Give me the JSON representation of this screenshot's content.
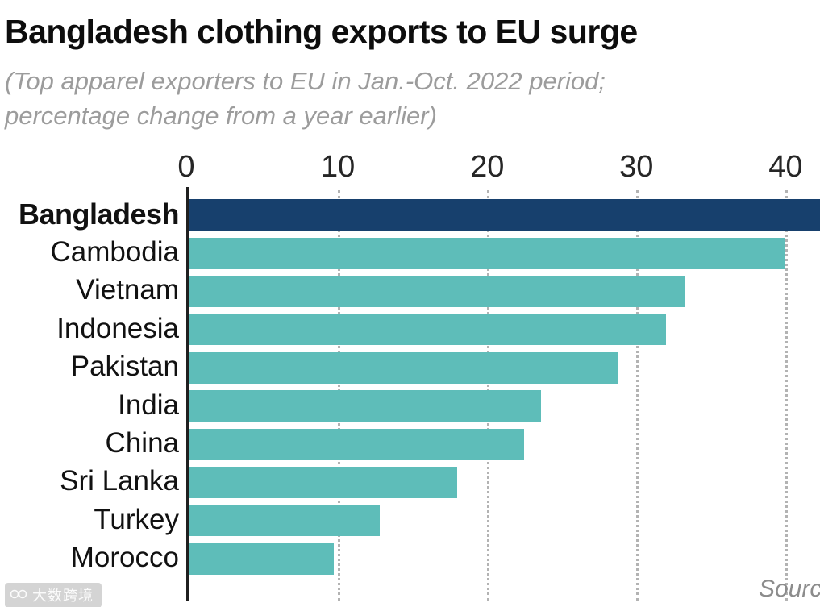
{
  "header": {
    "title": "Bangladesh clothing exports to EU surge",
    "subtitle_line1": "(Top apparel exporters to EU in Jan.-Oct. 2022 period;",
    "subtitle_line2": "percentage change from a year earlier)"
  },
  "footer": {
    "source_label": "Sourc",
    "watermark": "大数跨境"
  },
  "chart_data": {
    "type": "bar",
    "orientation": "horizontal",
    "title": "Bangladesh clothing exports to EU surge",
    "subtitle": "(Top apparel exporters to EU in Jan.-Oct. 2022 period; percentage change from a year earlier)",
    "categories": [
      "Bangladesh",
      "Cambodia",
      "Vietnam",
      "Indonesia",
      "Pakistan",
      "India",
      "China",
      "Sri Lanka",
      "Turkey",
      "Morocco"
    ],
    "values": [
      42.3,
      39.9,
      33.3,
      32.0,
      28.8,
      23.6,
      22.5,
      18.0,
      12.8,
      9.7
    ],
    "xlim": [
      0,
      42.3
    ],
    "ticks": [
      0,
      10,
      20,
      30,
      40
    ],
    "grid": "dotted-vertical",
    "legend": "none",
    "highlight_index": 0,
    "colors": {
      "highlight": "#17406d",
      "default": "#5ebdb9",
      "axis": "#1f1f1f",
      "grid": "#b3b3b3"
    }
  }
}
